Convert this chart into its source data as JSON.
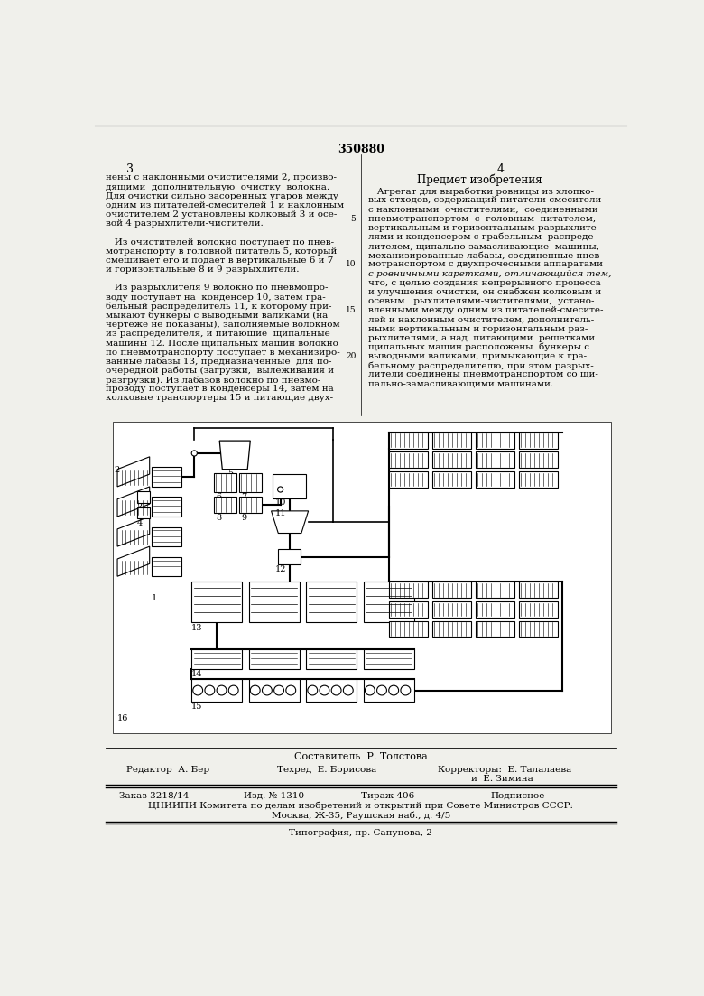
{
  "bg_color": "#f0f0eb",
  "page_number_center": "350880",
  "page_left": "3",
  "page_right": "4",
  "col_left_text": [
    "нены с наклонными очистителями 2, произво-",
    "дящими  дополнительную  очистку  волокна.",
    "Для очистки сильно засоренных угаров между",
    "одним из питателей-смесителей 1 и наклонным",
    "очистителем 2 установлены колковый 3 и осе-",
    "вой 4 разрыхлители-чистители.",
    "",
    "   Из очистителей волокно поступает по пнев-",
    "мотранспорту в головной питатель 5, который",
    "смешивает его и подает в вертикальные 6 и 7",
    "и горизонтальные 8 и 9 разрыхлители.",
    "",
    "   Из разрыхлителя 9 волокно по пневмопро-",
    "воду поступает на  конденсер 10, затем гра-",
    "бельный распределитель 11, к которому при-",
    "мыкают бункеры с выводными валиками (на",
    "чертеже не показаны), заполняемые волокном",
    "из распределителя, и питающие  щипальные",
    "машины 12. После щипальных машин волокно",
    "по пневмотранспорту поступает в механизиро-",
    "ванные лабазы 13, предназначенные  для по-",
    "очередной работы (загрузки,  вылеживания и",
    "разгрузки). Из лабазов волокно по пневмо-",
    "проводу поступает в конденсеры 14, затем на",
    "колковые транспортеры 15 и питающие двух-"
  ],
  "col_right_title": "Предмет изобретения",
  "col_right_text": [
    "   Агрегат для выработки ровницы из хлопко-",
    "вых отходов, содержащий питатели-смесители",
    "с наклонными  очистителями,  соединенными",
    "пневмотранспортом  с  головным  питателем,",
    "вертикальным и горизонтальным разрыхлите-",
    "лями и конденсером с грабельным  распреде-",
    "лителем, щипально-замасливающие  машины,",
    "механизированные лабазы, соединенные пнев-",
    "мотранспортом с двухпрочесными аппаратами",
    "с ровничными каретками, отличающийся тем,",
    "что, с целью создания непрерывного процесса",
    "и улучшения очистки, он снабжен колковым и",
    "осевым   рыхлителями-чистителями,  устано-",
    "вленными между одним из питателей-смесите-",
    "лей и наклонным очистителем, дополнитель-",
    "ными вертикальным и горизонтальным раз-",
    "рыхлителями, а над  питающими  решетками",
    "щипальных машин расположены  бункеры с",
    "выводными валиками, примыкающие к гра-",
    "бельному распределителю, при этом разрых-",
    "лители соединены пневмотранспортом со щи-",
    "пально-замасливающими машинами."
  ],
  "footer_sestavitel": "Составитель  Р. Толстова",
  "footer_redaktor": "Редактор  А. Бер",
  "footer_tekhred": "Техред  Е. Борисова",
  "footer_korrektory": "Корректоры:  Е. Талалаева",
  "footer_korrektory2": "и  Е. Зимина",
  "footer_zakaz": "Заказ 3218/14",
  "footer_izd": "Изд. № 1310",
  "footer_tirazh": "Тираж 406",
  "footer_podpisnoe": "Подписное",
  "footer_tsniipi": "ЦНИИПИ Комитета по делам изобретений и открытий при Совете Министров СССР:",
  "footer_address": "Москва, Ж-35, Раушская наб., д. 4/5",
  "footer_tipografia": "Типография, пр. Сапунова, 2"
}
